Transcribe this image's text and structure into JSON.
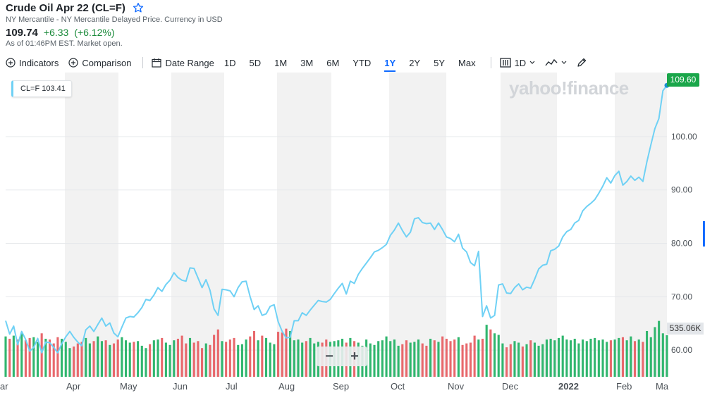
{
  "header": {
    "title": "Crude Oil Apr 22 (CL=F)",
    "subtitle": "NY Mercantile - NY Mercantile Delayed Price. Currency in USD",
    "price": "109.74",
    "change": "+6.33",
    "change_pct": "(+6.12%)",
    "as_of": "As of 01:46PM EST. Market open."
  },
  "toolbar": {
    "indicators": "Indicators",
    "comparison": "Comparison",
    "date_range": "Date Range",
    "ranges": [
      "1D",
      "5D",
      "1M",
      "3M",
      "6M",
      "YTD",
      "1Y",
      "2Y",
      "5Y",
      "Max"
    ],
    "active_range": "1Y",
    "interval": "1D"
  },
  "legend": {
    "text": "CL=F 103.41"
  },
  "watermark": "yahoo!finance",
  "last_price_label": "109.60",
  "volume_label": "535.06K",
  "colors": {
    "line": "#6fd1f5",
    "up": "#30b66e",
    "down": "#e8686c",
    "tag": "#1aa64a",
    "band": "#f2f2f2"
  },
  "chart_data": {
    "type": "line",
    "xlabels": [
      "ar",
      "Apr",
      "May",
      "Jun",
      "Jul",
      "Aug",
      "Sep",
      "Oct",
      "Nov",
      "Dec",
      "2022",
      "Feb",
      "Ma"
    ],
    "ytick_labels": [
      "60.00",
      "70.00",
      "80.00",
      "90.00",
      "100.00"
    ],
    "ylim": [
      55,
      112
    ],
    "series": [
      {
        "name": "CL=F",
        "values": [
          65.5,
          63,
          64.5,
          61,
          63.5,
          62,
          59.8,
          60.5,
          62.2,
          59.5,
          61.5,
          61.4,
          60.5,
          59.5,
          61.2,
          62.5,
          63.5,
          62.4,
          61.5,
          60.8,
          63.8,
          64.5,
          63.5,
          64.8,
          66,
          64.5,
          65.1,
          63.2,
          62.5,
          64.3,
          66,
          66.3,
          66.2,
          67,
          68,
          69.5,
          69.3,
          70.3,
          71.7,
          71,
          72.3,
          73.1,
          74.5,
          73.6,
          73.1,
          72.9,
          75.4,
          75.3,
          73.5,
          71.7,
          73.2,
          71.2,
          67.7,
          66.5,
          71.4,
          71.3,
          71.1,
          70,
          71.7,
          72.8,
          72.9,
          70,
          67.6,
          68.3,
          66.5,
          66.8,
          68.2,
          68.5,
          65.3,
          63.5,
          62.3,
          62.4,
          65.5,
          65.5,
          67,
          66.5,
          67.5,
          68.4,
          69.3,
          69.1,
          69,
          69.5,
          70.6,
          71.6,
          72.5,
          70.5,
          72.9,
          72.5,
          74.2,
          75.3,
          76.3,
          77.3,
          78.4,
          78.7,
          79.2,
          79.8,
          81.5,
          82.5,
          83.8,
          82.4,
          81.2,
          82.1,
          84.6,
          84.8,
          83.9,
          83.7,
          83.8,
          82.6,
          83.8,
          82.6,
          81.2,
          80.9,
          80.3,
          81.7,
          79.1,
          78.4,
          76.4,
          75.8,
          78.5,
          66.3,
          68.3,
          66,
          66.5,
          72.2,
          72.4,
          70.7,
          70.6,
          71.7,
          72.4,
          71.3,
          71.8,
          71.6,
          73.3,
          75.2,
          75.9,
          76.1,
          78.6,
          78.9,
          79.5,
          81.2,
          82.2,
          82.6,
          83.8,
          84.3,
          86.1,
          86.9,
          87.5,
          88.2,
          89.4,
          90.7,
          92.3,
          91.3,
          92.7,
          93.5,
          90.9,
          91.6,
          92.6,
          91.8,
          92.4,
          91.6,
          95.3,
          98.5,
          101.5,
          103.4,
          108.6,
          109.6
        ]
      }
    ],
    "volume": {
      "ylim": [
        0,
        1000
      ],
      "values": [
        520,
        490,
        530,
        480,
        560,
        470,
        500,
        510,
        450,
        560,
        490,
        480,
        430,
        510,
        490,
        450,
        370,
        390,
        430,
        450,
        500,
        430,
        460,
        520,
        460,
        470,
        410,
        430,
        480,
        510,
        470,
        440,
        450,
        460,
        400,
        370,
        420,
        470,
        480,
        500,
        440,
        410,
        470,
        490,
        530,
        430,
        500,
        440,
        460,
        370,
        430,
        410,
        540,
        610,
        460,
        450,
        480,
        500,
        410,
        420,
        480,
        520,
        590,
        470,
        530,
        500,
        440,
        420,
        580,
        570,
        620,
        590,
        470,
        480,
        440,
        460,
        500,
        430,
        450,
        440,
        480,
        450,
        460,
        470,
        490,
        440,
        500,
        460,
        440,
        400,
        480,
        430,
        410,
        460,
        470,
        520,
        460,
        480,
        400,
        420,
        470,
        440,
        450,
        480,
        430,
        400,
        490,
        470,
        450,
        520,
        490,
        460,
        480,
        510,
        410,
        430,
        440,
        530,
        480,
        490,
        670,
        610,
        560,
        540,
        430,
        380,
        420,
        460,
        440,
        390,
        420,
        470,
        440,
        400,
        420,
        480,
        490,
        470,
        500,
        530,
        480,
        470,
        490,
        430,
        480,
        460,
        490,
        500,
        470,
        480,
        450,
        470,
        480,
        500,
        510,
        470,
        520,
        460,
        480,
        450,
        590,
        510,
        640,
        720,
        560,
        535
      ]
    }
  }
}
